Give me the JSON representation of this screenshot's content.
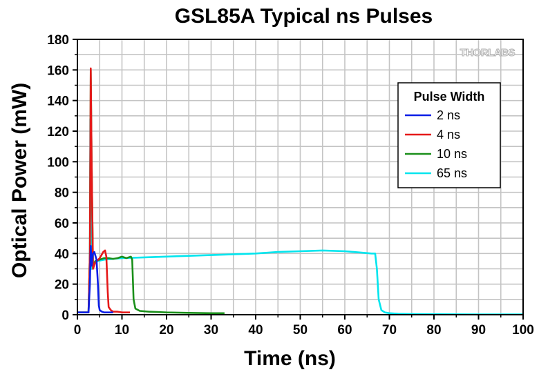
{
  "watermark": "THORLABS",
  "chart_data": {
    "type": "line",
    "title": "GSL85A Typical ns Pulses",
    "xlabel": "Time (ns)",
    "ylabel": "Optical Power (mW)",
    "xlim": [
      0,
      100
    ],
    "ylim": [
      0,
      180
    ],
    "xticks": [
      0,
      10,
      20,
      30,
      40,
      50,
      60,
      70,
      80,
      90,
      100
    ],
    "yticks": [
      0,
      20,
      40,
      60,
      80,
      100,
      120,
      140,
      160,
      180
    ],
    "grid": true,
    "legend": {
      "title": "Pulse Width",
      "position": "top-right"
    },
    "series": [
      {
        "name": "65 ns",
        "color": "#00e5ee",
        "x": [
          0,
          2.5,
          2.8,
          2.9,
          3.0,
          3.2,
          3.5,
          4.5,
          6,
          8,
          10,
          15,
          20,
          25,
          30,
          35,
          40,
          45,
          50,
          55,
          60,
          62,
          64,
          66,
          66.8,
          67.2,
          67.6,
          68.2,
          69,
          70,
          72,
          75,
          80,
          90,
          100
        ],
        "y": [
          1.5,
          1.5,
          40,
          128,
          110,
          30,
          33,
          35,
          36,
          36.5,
          37,
          37.5,
          38,
          38.5,
          39,
          39.5,
          40,
          41,
          41.5,
          42,
          41.5,
          41,
          40.5,
          40,
          40,
          30,
          10,
          3,
          1.5,
          1,
          0.6,
          0.4,
          0.3,
          0.2,
          0.2
        ]
      },
      {
        "name": "10 ns",
        "color": "#1a8f1a",
        "x": [
          0,
          2.5,
          2.8,
          3.0,
          3.2,
          3.5,
          4,
          5,
          6,
          7,
          8,
          9,
          10,
          11,
          12,
          12.3,
          12.6,
          13,
          14,
          16,
          20,
          25,
          30,
          33
        ],
        "y": [
          1.5,
          1.5,
          40,
          160,
          100,
          32,
          35,
          36,
          37,
          37,
          36.5,
          37,
          38,
          37,
          38,
          36,
          10,
          4,
          2.5,
          2,
          1.5,
          1.2,
          1,
          1
        ]
      },
      {
        "name": "4 ns",
        "color": "#e51919",
        "x": [
          0,
          2.5,
          2.8,
          3.0,
          3.2,
          3.5,
          4,
          5,
          5.8,
          6.2,
          6.5,
          6.8,
          7,
          7.5,
          8,
          9,
          10,
          11,
          11.8
        ],
        "y": [
          1.5,
          1.5,
          40,
          161,
          100,
          30,
          34,
          37,
          41,
          42,
          38,
          15,
          5,
          3,
          2,
          2,
          1.5,
          1.5,
          1.5
        ]
      },
      {
        "name": "2 ns",
        "color": "#0a1ee6",
        "x": [
          0,
          2.5,
          2.8,
          3.0,
          3.2,
          3.5,
          3.8,
          4.0,
          4.3,
          4.6,
          4.8,
          5.0,
          5.5,
          6,
          7,
          8
        ],
        "y": [
          1.5,
          1.5,
          20,
          45,
          32,
          40,
          41,
          39,
          36,
          20,
          6,
          3,
          2,
          1.5,
          1.5,
          1.5
        ]
      }
    ]
  }
}
